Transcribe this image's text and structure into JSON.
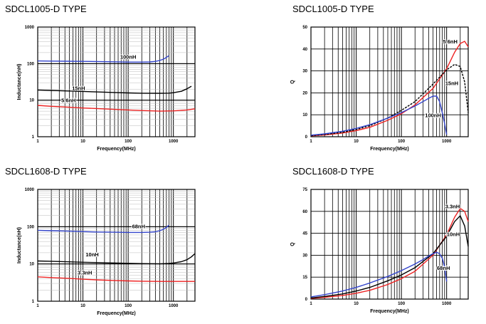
{
  "chart_data": [
    {
      "type": "line",
      "title": "SDCL1005-D TYPE",
      "xlabel": "Frequency(MHz)",
      "ylabel": "Inductance(nH)",
      "xscale": "log",
      "yscale": "log",
      "xlim": [
        1,
        3000
      ],
      "ylim": [
        1,
        1000
      ],
      "xticks": [
        "1",
        "10",
        "100",
        "1000"
      ],
      "yticks": [
        "1",
        "10",
        "100",
        "1000"
      ],
      "grid": true,
      "series": [
        {
          "name": "100nH",
          "color": "#3344cc",
          "style": "solid",
          "x": [
            1,
            2,
            5,
            10,
            20,
            50,
            100,
            200,
            300,
            400,
            500,
            600,
            700,
            800
          ],
          "y": [
            118,
            117,
            116,
            115,
            114,
            112,
            110,
            110,
            111,
            115,
            122,
            132,
            148,
            165
          ]
        },
        {
          "name": "15nH",
          "color": "#000000",
          "style": "solid",
          "x": [
            1,
            2,
            5,
            10,
            20,
            50,
            100,
            200,
            500,
            800,
            1000,
            1500,
            2000,
            2500
          ],
          "y": [
            19,
            18.5,
            17.8,
            17.3,
            16.8,
            16.2,
            15.8,
            15.5,
            15.4,
            15.6,
            16,
            17.5,
            20.5,
            24
          ]
        },
        {
          "name": "5.6nH",
          "color": "#ee2222",
          "style": "solid",
          "x": [
            1,
            2,
            5,
            10,
            20,
            50,
            100,
            200,
            500,
            1000,
            2000,
            3000
          ],
          "y": [
            7.2,
            6.8,
            6.4,
            6.1,
            5.9,
            5.6,
            5.4,
            5.2,
            5.0,
            5.1,
            5.4,
            5.8
          ]
        }
      ],
      "annotations": [
        {
          "text": "100nH",
          "x": 100,
          "y": 135
        },
        {
          "text": "15nH",
          "x": 8,
          "y": 19
        },
        {
          "text": "5.6nH",
          "x": 4.8,
          "y": 8.8
        }
      ]
    },
    {
      "type": "line",
      "title": "SDCL1005-D TYPE",
      "xlabel": "Frequency(MHz)",
      "ylabel": "Q",
      "xscale": "log",
      "yscale": "linear",
      "xlim": [
        1,
        3000
      ],
      "ylim": [
        0,
        50
      ],
      "xticks": [
        "1",
        "10",
        "100",
        "1000"
      ],
      "yticks": [
        "0",
        "10",
        "20",
        "30",
        "40",
        "50"
      ],
      "grid": true,
      "series": [
        {
          "name": "5.6nH",
          "color": "#ee2222",
          "style": "solid",
          "x": [
            1,
            2,
            5,
            10,
            20,
            50,
            100,
            200,
            500,
            1000,
            1500,
            2000,
            2500,
            3000
          ],
          "y": [
            0.4,
            0.8,
            1.7,
            2.8,
            4.3,
            7.5,
            10.5,
            14.5,
            22,
            31,
            38.5,
            42.5,
            43.5,
            41
          ]
        },
        {
          "name": "15nH",
          "color": "#000000",
          "style": "dashed",
          "x": [
            1,
            2,
            5,
            10,
            20,
            50,
            100,
            200,
            500,
            1000,
            1500,
            2000,
            2500,
            3000
          ],
          "y": [
            0.5,
            1,
            2,
            3.3,
            5,
            8.5,
            12,
            16,
            24,
            30.5,
            33,
            32,
            25,
            11
          ]
        },
        {
          "name": "100nH",
          "color": "#3344cc",
          "style": "solid",
          "x": [
            1,
            2,
            5,
            10,
            20,
            50,
            100,
            200,
            300,
            400,
            500,
            600,
            700,
            800,
            900,
            1000
          ],
          "y": [
            0.7,
            1.3,
            2.5,
            3.8,
            5.5,
            8.5,
            11,
            14,
            16,
            17.5,
            18.5,
            18.5,
            16,
            11,
            6,
            1
          ]
        }
      ],
      "annotations": [
        {
          "text": "5.6nH",
          "x": 1200,
          "y": 42.5
        },
        {
          "text": "15nH",
          "x": 1300,
          "y": 23.5
        },
        {
          "text": "100nH",
          "x": 500,
          "y": 9
        }
      ]
    },
    {
      "type": "line",
      "title": "SDCL1608-D TYPE",
      "xlabel": "Frequency(MHz)",
      "ylabel": "Inductance(nH)",
      "xscale": "log",
      "yscale": "log",
      "xlim": [
        1,
        3000
      ],
      "ylim": [
        1,
        1000
      ],
      "xticks": [
        "1",
        "10",
        "100",
        "1000"
      ],
      "yticks": [
        "1",
        "10",
        "100",
        "1000"
      ],
      "grid": true,
      "series": [
        {
          "name": "68nH",
          "color": "#3344cc",
          "style": "solid",
          "x": [
            1,
            2,
            5,
            10,
            20,
            50,
            100,
            200,
            300,
            400,
            500,
            600,
            700,
            800
          ],
          "y": [
            80,
            78,
            76,
            74,
            72,
            71,
            70,
            70,
            71,
            73,
            78,
            85,
            95,
            110
          ]
        },
        {
          "name": "10nH",
          "color": "#000000",
          "style": "solid",
          "x": [
            1,
            2,
            5,
            10,
            20,
            50,
            100,
            200,
            500,
            800,
            1000,
            1500,
            2000,
            2500,
            3000
          ],
          "y": [
            12,
            11.8,
            11.4,
            11.1,
            10.9,
            10.6,
            10.4,
            10.2,
            10.1,
            10.3,
            10.6,
            11.5,
            13,
            15.5,
            19
          ]
        },
        {
          "name": "3.3nH",
          "color": "#ee2222",
          "style": "solid",
          "x": [
            1,
            2,
            5,
            10,
            20,
            50,
            100,
            200,
            500,
            1000,
            2000,
            3000
          ],
          "y": [
            4.5,
            4.3,
            4.1,
            3.9,
            3.75,
            3.6,
            3.5,
            3.45,
            3.4,
            3.4,
            3.4,
            3.4
          ]
        }
      ],
      "annotations": [
        {
          "text": "68nH",
          "x": 170,
          "y": 90
        },
        {
          "text": "10nH",
          "x": 16,
          "y": 16
        },
        {
          "text": "3.3nH",
          "x": 11,
          "y": 5.2
        }
      ]
    },
    {
      "type": "line",
      "title": "SDCL1608-D TYPE",
      "xlabel": "Frequency(MHz)",
      "ylabel": "Q",
      "xscale": "log",
      "yscale": "linear",
      "xlim": [
        1,
        3000
      ],
      "ylim": [
        0,
        75
      ],
      "xticks": [
        "1",
        "10",
        "100",
        "1000"
      ],
      "yticks": [
        "0",
        "15",
        "30",
        "45",
        "60",
        "75"
      ],
      "grid": true,
      "series": [
        {
          "name": "3.3nH",
          "color": "#ee2222",
          "style": "solid",
          "x": [
            1,
            2,
            5,
            10,
            20,
            50,
            100,
            200,
            500,
            1000,
            1500,
            2000,
            2500,
            3000
          ],
          "y": [
            0.5,
            1.2,
            2.5,
            4,
            6,
            10,
            14,
            19,
            30,
            44,
            56,
            62,
            60,
            53
          ]
        },
        {
          "name": "10nH",
          "color": "#000000",
          "style": "solid",
          "x": [
            1,
            2,
            5,
            10,
            20,
            50,
            100,
            200,
            500,
            1000,
            1500,
            2000,
            2500,
            3000
          ],
          "y": [
            0.8,
            1.8,
            3.5,
            5.5,
            8,
            12.5,
            16.5,
            21.5,
            31,
            43,
            53,
            57,
            50,
            36
          ]
        },
        {
          "name": "68nH",
          "color": "#3344cc",
          "style": "solid",
          "x": [
            1,
            2,
            5,
            10,
            20,
            50,
            100,
            200,
            300,
            400,
            500,
            600,
            700,
            800,
            900,
            1000
          ],
          "y": [
            1.5,
            3,
            5.5,
            8,
            11,
            15.5,
            19.5,
            24,
            27,
            29.5,
            31,
            32,
            31,
            28,
            22,
            12
          ]
        }
      ],
      "annotations": [
        {
          "text": "3.3nH",
          "x": 1350,
          "y": 62
        },
        {
          "text": "10nH",
          "x": 1400,
          "y": 43
        },
        {
          "text": "68nH",
          "x": 850,
          "y": 20
        }
      ]
    }
  ]
}
